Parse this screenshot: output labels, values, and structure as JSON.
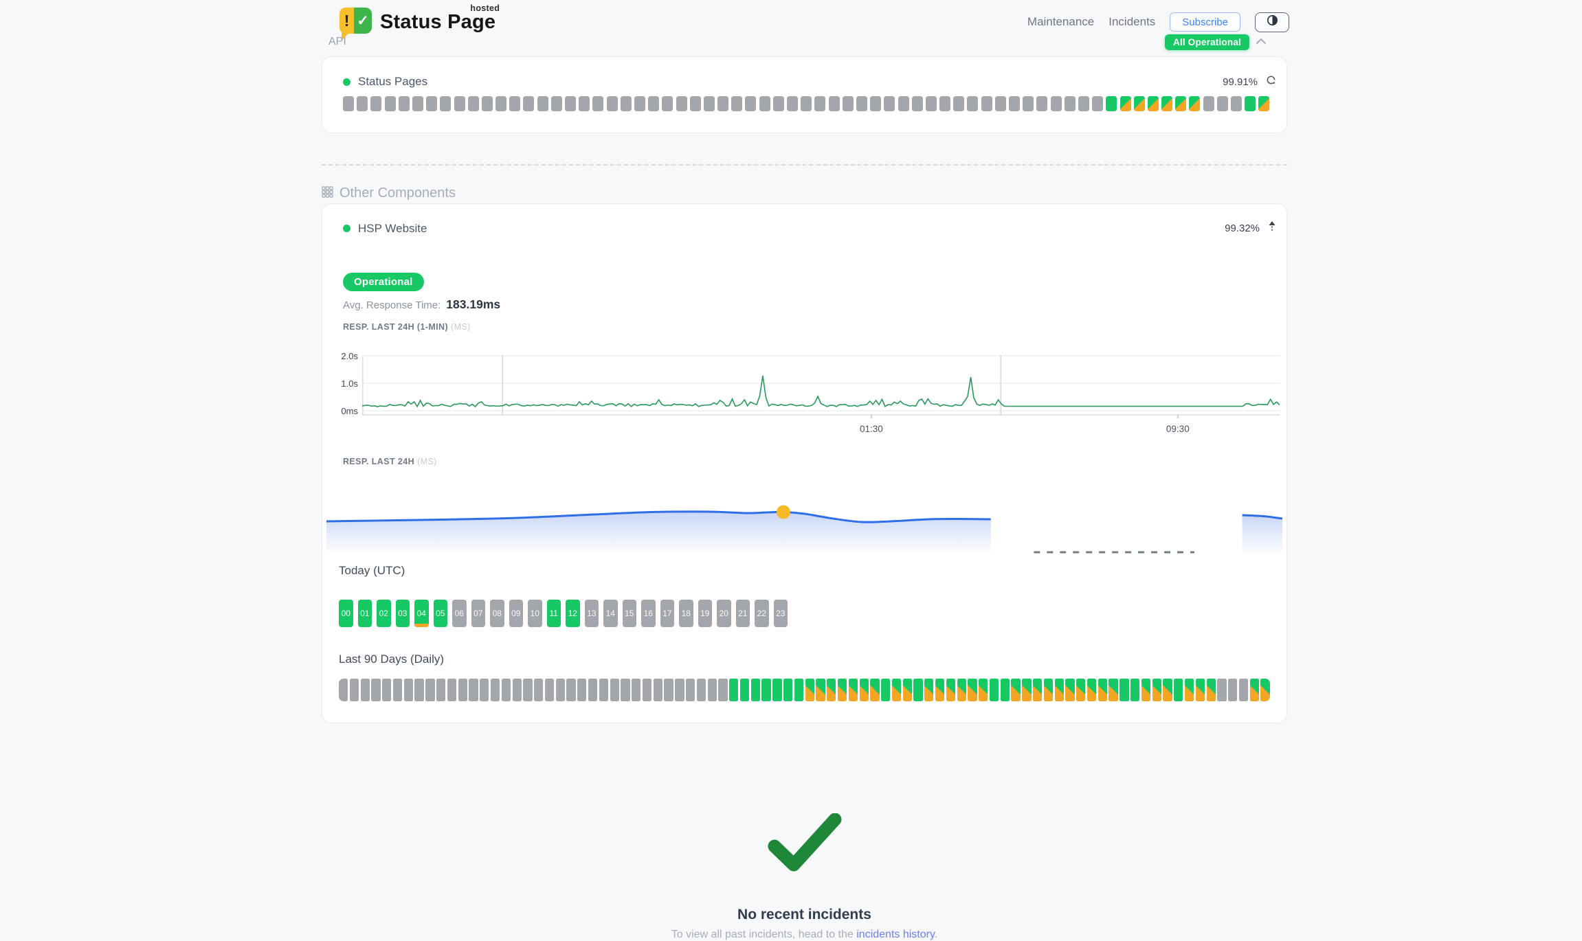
{
  "colors": {
    "green": "#17c964",
    "orange": "#f5a524",
    "gray_bar": "#a3a7ac",
    "chart_line_green": "#27995a",
    "chart_line_blue": "#2e6fe8",
    "marker_yellow": "#f6b824",
    "link_blue": "#6c7ef3"
  },
  "header": {
    "brand": {
      "name": "Status Page",
      "superscript": "hosted",
      "alert_glyph": "!",
      "check_glyph": "✓"
    },
    "nav": {
      "maintenance": "Maintenance",
      "incidents": "Incidents"
    },
    "subscribe": "Subscribe",
    "overall_status": "All Operational"
  },
  "api_section": {
    "title": "API",
    "component": {
      "name": "Status Pages",
      "uptime": "99.91%",
      "bars": "nnnnnnnnnnnnnnnnnnnnnnnnnnnnnnnnnnnnnnnnnnnnnnnnnnnnnnnuppppppnnnup"
    }
  },
  "other": {
    "title": "Other Components",
    "component": {
      "name": "HSP Website",
      "uptime": "99.32%",
      "status": "Operational",
      "avg_label": "Avg. Response Time:",
      "avg_value": "183.19ms"
    },
    "chart1": {
      "label": "RESP. LAST 24H (1-MIN)",
      "unit": "(MS)",
      "y_ticks": [
        "2.0s",
        "1.0s",
        "0ms"
      ],
      "x_ticks": [
        {
          "label": "01:30",
          "f": 0.555
        },
        {
          "label": "09:30",
          "f": 0.889
        }
      ],
      "vlines": [
        0.153,
        0.696
      ],
      "flat": [
        0.7,
        0.962
      ],
      "spikes": [
        {
          "f": 0.25,
          "h": 8
        },
        {
          "f": 0.322,
          "h": 10
        },
        {
          "f": 0.435,
          "h": 45
        },
        {
          "f": 0.497,
          "h": 15
        },
        {
          "f": 0.56,
          "h": 9
        },
        {
          "f": 0.61,
          "h": 11
        },
        {
          "f": 0.662,
          "h": 43
        }
      ]
    },
    "chart2": {
      "label": "RESP. LAST 24H",
      "unit": "(MS)",
      "area1": [
        [
          0,
          56
        ],
        [
          0.05,
          55
        ],
        [
          0.12,
          53.5
        ],
        [
          0.2,
          51
        ],
        [
          0.28,
          46
        ],
        [
          0.34,
          42.5
        ],
        [
          0.4,
          42
        ],
        [
          0.44,
          44
        ],
        [
          0.46,
          43
        ],
        [
          0.478,
          42.5
        ],
        [
          0.5,
          45
        ],
        [
          0.53,
          52
        ],
        [
          0.56,
          57
        ],
        [
          0.59,
          56
        ],
        [
          0.63,
          53
        ],
        [
          0.66,
          52.5
        ],
        [
          0.695,
          53
        ]
      ],
      "dot_f": 0.478,
      "dash": [
        0.74,
        0.908
      ],
      "area2": [
        [
          0.958,
          47
        ],
        [
          0.98,
          48.5
        ],
        [
          1,
          52
        ]
      ]
    },
    "today": {
      "title": "Today (UTC)",
      "hours": [
        {
          "label": "00",
          "state": "up"
        },
        {
          "label": "01",
          "state": "up"
        },
        {
          "label": "02",
          "state": "up"
        },
        {
          "label": "03",
          "state": "up"
        },
        {
          "label": "04",
          "state": "up-incident"
        },
        {
          "label": "05",
          "state": "up"
        },
        {
          "label": "06",
          "state": "none"
        },
        {
          "label": "07",
          "state": "none"
        },
        {
          "label": "08",
          "state": "none"
        },
        {
          "label": "09",
          "state": "none"
        },
        {
          "label": "10",
          "state": "none"
        },
        {
          "label": "11",
          "state": "up"
        },
        {
          "label": "12",
          "state": "up"
        },
        {
          "label": "13",
          "state": "none"
        },
        {
          "label": "14",
          "state": "none"
        },
        {
          "label": "15",
          "state": "none"
        },
        {
          "label": "16",
          "state": "none"
        },
        {
          "label": "17",
          "state": "none"
        },
        {
          "label": "18",
          "state": "none"
        },
        {
          "label": "19",
          "state": "none"
        },
        {
          "label": "20",
          "state": "none"
        },
        {
          "label": "21",
          "state": "none"
        },
        {
          "label": "22",
          "state": "none"
        },
        {
          "label": "23",
          "state": "none"
        }
      ]
    },
    "last90": {
      "title": "Last 90 Days (Daily)",
      "bars": "nnnnnnnnnnnnnnnnnnnnnnnnnnnnnnnnnnnnuuuuuuupppppppuppuppppppuuppppppppppuupppupppnnnpp"
    }
  },
  "footer": {
    "title": "No recent incidents",
    "subtitle_prefix": "To view all past incidents, head to the ",
    "link": "incidents history",
    "suffix": "."
  }
}
